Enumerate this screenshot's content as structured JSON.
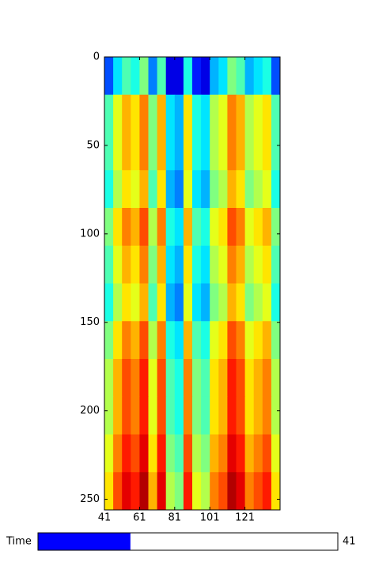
{
  "chart_data": {
    "type": "heatmap",
    "colormap": "jet",
    "xlim": [
      41,
      141
    ],
    "ylim": [
      256,
      0
    ],
    "xticks": [
      41,
      61,
      81,
      101,
      121
    ],
    "yticks": [
      0,
      50,
      100,
      150,
      200,
      250
    ],
    "z": [
      [
        0.2,
        0.35,
        0.45,
        0.4,
        0.5,
        0.25,
        0.45,
        0.1,
        0.1,
        0.4,
        0.15,
        0.1,
        0.3,
        0.35,
        0.5,
        0.45,
        0.3,
        0.35,
        0.4,
        0.2
      ],
      [
        0.45,
        0.6,
        0.7,
        0.65,
        0.75,
        0.5,
        0.7,
        0.35,
        0.3,
        0.65,
        0.4,
        0.35,
        0.55,
        0.6,
        0.75,
        0.7,
        0.55,
        0.6,
        0.65,
        0.45
      ],
      [
        0.45,
        0.6,
        0.7,
        0.65,
        0.75,
        0.5,
        0.7,
        0.35,
        0.3,
        0.65,
        0.4,
        0.35,
        0.55,
        0.6,
        0.75,
        0.7,
        0.55,
        0.6,
        0.65,
        0.45
      ],
      [
        0.4,
        0.55,
        0.65,
        0.6,
        0.7,
        0.45,
        0.65,
        0.3,
        0.25,
        0.6,
        0.35,
        0.3,
        0.5,
        0.55,
        0.7,
        0.65,
        0.5,
        0.55,
        0.6,
        0.4
      ],
      [
        0.5,
        0.65,
        0.75,
        0.7,
        0.8,
        0.55,
        0.75,
        0.4,
        0.35,
        0.7,
        0.45,
        0.4,
        0.6,
        0.65,
        0.8,
        0.75,
        0.6,
        0.65,
        0.7,
        0.5
      ],
      [
        0.45,
        0.6,
        0.7,
        0.65,
        0.75,
        0.5,
        0.7,
        0.35,
        0.3,
        0.65,
        0.4,
        0.35,
        0.55,
        0.6,
        0.75,
        0.7,
        0.55,
        0.6,
        0.65,
        0.45
      ],
      [
        0.4,
        0.55,
        0.65,
        0.6,
        0.7,
        0.45,
        0.65,
        0.3,
        0.25,
        0.6,
        0.35,
        0.3,
        0.5,
        0.55,
        0.7,
        0.65,
        0.5,
        0.55,
        0.6,
        0.4
      ],
      [
        0.5,
        0.65,
        0.75,
        0.7,
        0.8,
        0.55,
        0.75,
        0.4,
        0.35,
        0.7,
        0.45,
        0.4,
        0.6,
        0.65,
        0.8,
        0.75,
        0.6,
        0.65,
        0.7,
        0.5
      ],
      [
        0.55,
        0.7,
        0.8,
        0.75,
        0.85,
        0.6,
        0.8,
        0.45,
        0.4,
        0.75,
        0.5,
        0.45,
        0.65,
        0.7,
        0.85,
        0.8,
        0.65,
        0.7,
        0.75,
        0.55
      ],
      [
        0.55,
        0.7,
        0.8,
        0.75,
        0.85,
        0.6,
        0.8,
        0.45,
        0.4,
        0.75,
        0.5,
        0.45,
        0.65,
        0.7,
        0.85,
        0.8,
        0.65,
        0.7,
        0.75,
        0.55
      ],
      [
        0.6,
        0.75,
        0.85,
        0.8,
        0.9,
        0.65,
        0.85,
        0.5,
        0.45,
        0.8,
        0.55,
        0.5,
        0.7,
        0.75,
        0.9,
        0.85,
        0.7,
        0.75,
        0.8,
        0.6
      ],
      [
        0.65,
        0.8,
        0.9,
        0.85,
        0.95,
        0.7,
        0.9,
        0.55,
        0.5,
        0.85,
        0.6,
        0.55,
        0.75,
        0.8,
        0.95,
        0.9,
        0.75,
        0.8,
        0.85,
        0.65
      ]
    ]
  },
  "slider": {
    "label": "Time",
    "value": 41,
    "min": 0,
    "max": 133,
    "color": "#0000ff"
  }
}
